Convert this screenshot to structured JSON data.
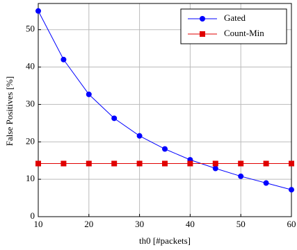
{
  "chart_data": {
    "type": "line",
    "x_label": "th0 [#packets]",
    "y_label": "False Positives [%]",
    "x": [
      10,
      15,
      20,
      25,
      30,
      35,
      40,
      45,
      50,
      55,
      60
    ],
    "series": [
      {
        "name": "Gated",
        "color": "#0000ff",
        "marker": "circle",
        "values": [
          55,
          42,
          32.7,
          26.3,
          21.6,
          18.1,
          15.2,
          12.9,
          10.8,
          9.0,
          7.2
        ]
      },
      {
        "name": "Count-Min",
        "color": "#e00000",
        "marker": "square",
        "values": [
          14.2,
          14.2,
          14.2,
          14.2,
          14.2,
          14.2,
          14.2,
          14.2,
          14.2,
          14.2,
          14.2
        ]
      }
    ],
    "xlim": [
      10,
      60
    ],
    "xticks": [
      10,
      20,
      30,
      40,
      50,
      60
    ],
    "ylim": [
      0,
      57
    ],
    "yticks": [
      0,
      10,
      20,
      30,
      40,
      50
    ],
    "grid": true,
    "legend": "upper-right"
  }
}
